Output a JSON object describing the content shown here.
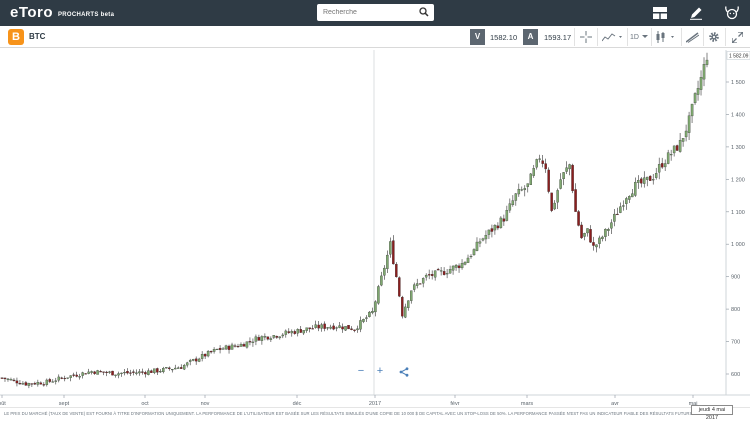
{
  "header": {
    "logo_text": "eToro",
    "logo_sub": "PROCHARTS beta",
    "search_placeholder": "Recherche"
  },
  "toolbar": {
    "symbol_badge": "B",
    "symbol": "BTC",
    "sell_label": "V",
    "sell_price": "1582.10",
    "buy_label": "A",
    "buy_price": "1593.17",
    "period": "1D"
  },
  "chart_data": {
    "type": "candlestick",
    "instrument": "BTC",
    "interval": "1D",
    "x_tick_labels": [
      "oût",
      "sept",
      "oct",
      "nov",
      "déc",
      "2017",
      "févr",
      "mars",
      "avr",
      "mai"
    ],
    "y_tick_labels": [
      "600",
      "700",
      "800",
      "900",
      "1 000",
      "1 100",
      "1 200",
      "1 300",
      "1 400",
      "1 500"
    ],
    "ylim": [
      560,
      1600
    ],
    "last_price_label": "1 582.09",
    "up_color": "#7fa870",
    "down_color": "#8b1e1e",
    "approx_close_path": [
      [
        0,
        588
      ],
      [
        8,
        570
      ],
      [
        15,
        575
      ],
      [
        22,
        592
      ],
      [
        30,
        608
      ],
      [
        38,
        602
      ],
      [
        46,
        605
      ],
      [
        52,
        610
      ],
      [
        60,
        622
      ],
      [
        66,
        650
      ],
      [
        72,
        675
      ],
      [
        80,
        690
      ],
      [
        86,
        712
      ],
      [
        92,
        720
      ],
      [
        100,
        735
      ],
      [
        106,
        745
      ],
      [
        112,
        748
      ],
      [
        118,
        740
      ],
      [
        124,
        790
      ],
      [
        128,
        930
      ],
      [
        130,
        1000
      ],
      [
        132,
        900
      ],
      [
        134,
        785
      ],
      [
        137,
        860
      ],
      [
        142,
        900
      ],
      [
        148,
        915
      ],
      [
        154,
        940
      ],
      [
        158,
        980
      ],
      [
        160,
        1010
      ],
      [
        164,
        1045
      ],
      [
        168,
        1080
      ],
      [
        172,
        1150
      ],
      [
        176,
        1180
      ],
      [
        180,
        1270
      ],
      [
        182,
        1240
      ],
      [
        184,
        1100
      ],
      [
        187,
        1200
      ],
      [
        190,
        1245
      ],
      [
        192,
        1100
      ],
      [
        194,
        1020
      ],
      [
        196,
        1040
      ],
      [
        198,
        990
      ],
      [
        200,
        1010
      ],
      [
        203,
        1050
      ],
      [
        206,
        1100
      ],
      [
        209,
        1150
      ],
      [
        212,
        1180
      ],
      [
        215,
        1190
      ],
      [
        218,
        1210
      ],
      [
        221,
        1250
      ],
      [
        224,
        1280
      ],
      [
        227,
        1310
      ],
      [
        230,
        1380
      ],
      [
        232,
        1450
      ],
      [
        234,
        1510
      ],
      [
        236,
        1582
      ]
    ]
  },
  "zoom": {
    "minus": "−",
    "plus": "+"
  },
  "footer": {
    "disclaimer": "LE PRIX DU MARCHÉ (TAUX DE VENTE) EST FOURNI À TITRE D'INFORMATION UNIQUEMENT. LA PERFORMANCE DE L'UTILISATEUR EST BASÉE SUR LES RÉSULTATS SIMULÉS D'UNE COPIE DE 10 000 $ DE CAPITAL AVEC UN STOP-LOSS DE 50%. LA PERFORMANCE PASSÉE N'EST PAS UN INDICATEUR FIABLE DES RÉSULTATS FUTURS.",
    "date": "jeudi 4 mai 2017"
  }
}
